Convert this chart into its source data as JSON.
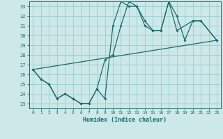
{
  "xlabel": "Humidex (Indice chaleur)",
  "bg_color": "#cce8e8",
  "grid_color": "#99cccc",
  "line_color": "#1a6b6b",
  "x_values": [
    0,
    1,
    2,
    3,
    4,
    5,
    6,
    7,
    8,
    9,
    10,
    11,
    12,
    13,
    14,
    15,
    16,
    17,
    18,
    19,
    20,
    21,
    22,
    23
  ],
  "series1": [
    26.5,
    25.5,
    25.0,
    23.5,
    24.0,
    23.5,
    23.0,
    23.0,
    24.5,
    23.5,
    31.0,
    33.5,
    33.0,
    33.0,
    31.0,
    30.5,
    30.5,
    33.5,
    30.5,
    null,
    31.5,
    31.5,
    null,
    29.5
  ],
  "series2": [
    26.5,
    25.5,
    25.0,
    23.5,
    24.0,
    23.5,
    23.0,
    23.0,
    24.5,
    27.5,
    28.0,
    31.0,
    33.5,
    33.0,
    31.5,
    30.5,
    30.5,
    33.5,
    32.0,
    29.5,
    31.5,
    31.5,
    null,
    29.5
  ],
  "series3_x": [
    0,
    23
  ],
  "series3_y": [
    26.5,
    29.5
  ],
  "ylim": [
    22.5,
    33.5
  ],
  "xlim": [
    -0.5,
    23.5
  ],
  "yticks": [
    23,
    24,
    25,
    26,
    27,
    28,
    29,
    30,
    31,
    32,
    33
  ],
  "xticks": [
    0,
    1,
    2,
    3,
    4,
    5,
    6,
    7,
    8,
    9,
    10,
    11,
    12,
    13,
    14,
    15,
    16,
    17,
    18,
    19,
    20,
    21,
    22,
    23
  ]
}
